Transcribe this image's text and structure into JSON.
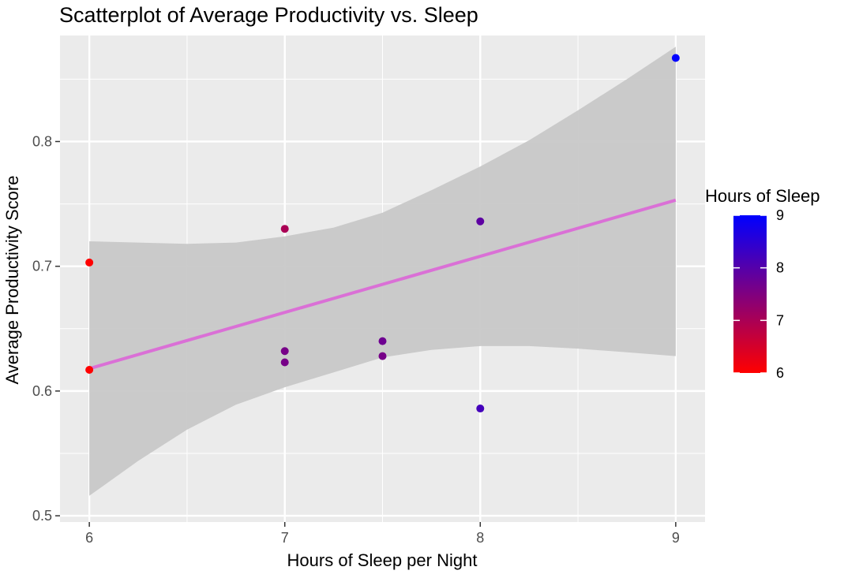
{
  "chart_data": {
    "type": "scatter",
    "title": "Scatterplot of Average Productivity vs. Sleep",
    "xlabel": "Hours of Sleep per Night",
    "ylabel": "Average Productivity Score",
    "xlim": [
      5.85,
      9.15
    ],
    "ylim": [
      0.495,
      0.885
    ],
    "x_ticks": [
      6,
      7,
      8,
      9
    ],
    "y_ticks": [
      0.5,
      0.6,
      0.7,
      0.8
    ],
    "x_tick_labels": [
      "6",
      "7",
      "8",
      "9"
    ],
    "y_tick_labels": [
      "0.5",
      "0.6",
      "0.7",
      "0.8"
    ],
    "grid": true,
    "points": [
      {
        "x": 6,
        "y": 0.703,
        "color_value": 6.0
      },
      {
        "x": 6,
        "y": 0.617,
        "color_value": 6.0
      },
      {
        "x": 7,
        "y": 0.73,
        "color_value": 7.0
      },
      {
        "x": 7,
        "y": 0.632,
        "color_value": 7.6
      },
      {
        "x": 7,
        "y": 0.623,
        "color_value": 7.6
      },
      {
        "x": 7.5,
        "y": 0.64,
        "color_value": 7.7
      },
      {
        "x": 7.5,
        "y": 0.628,
        "color_value": 7.6
      },
      {
        "x": 8,
        "y": 0.736,
        "color_value": 7.9
      },
      {
        "x": 8,
        "y": 0.586,
        "color_value": 8.2
      },
      {
        "x": 9,
        "y": 0.867,
        "color_value": 9.0
      }
    ],
    "trend_line": {
      "x": [
        6,
        9
      ],
      "y": [
        0.618,
        0.753
      ],
      "color": "#da70d6"
    },
    "confidence_band": {
      "x": [
        6,
        6.25,
        6.5,
        6.75,
        7,
        7.25,
        7.5,
        7.75,
        8,
        8.25,
        8.5,
        8.75,
        9
      ],
      "lower": [
        0.516,
        0.544,
        0.569,
        0.589,
        0.603,
        0.615,
        0.627,
        0.633,
        0.636,
        0.636,
        0.634,
        0.631,
        0.628
      ],
      "upper": [
        0.72,
        0.719,
        0.718,
        0.719,
        0.724,
        0.731,
        0.743,
        0.761,
        0.78,
        0.801,
        0.825,
        0.85,
        0.876
      ]
    },
    "legend": {
      "title": "Hours of Sleep",
      "position": "right",
      "type": "gradient",
      "breaks": [
        6,
        7,
        8,
        9
      ],
      "labels": [
        "6",
        "7",
        "8",
        "9"
      ],
      "low_color": "#ff0000",
      "high_color": "#0000ff"
    },
    "colors": {
      "panel_bg": "#ebebeb",
      "grid_major": "#ffffff",
      "band_fill": "#c8c8c8"
    }
  }
}
